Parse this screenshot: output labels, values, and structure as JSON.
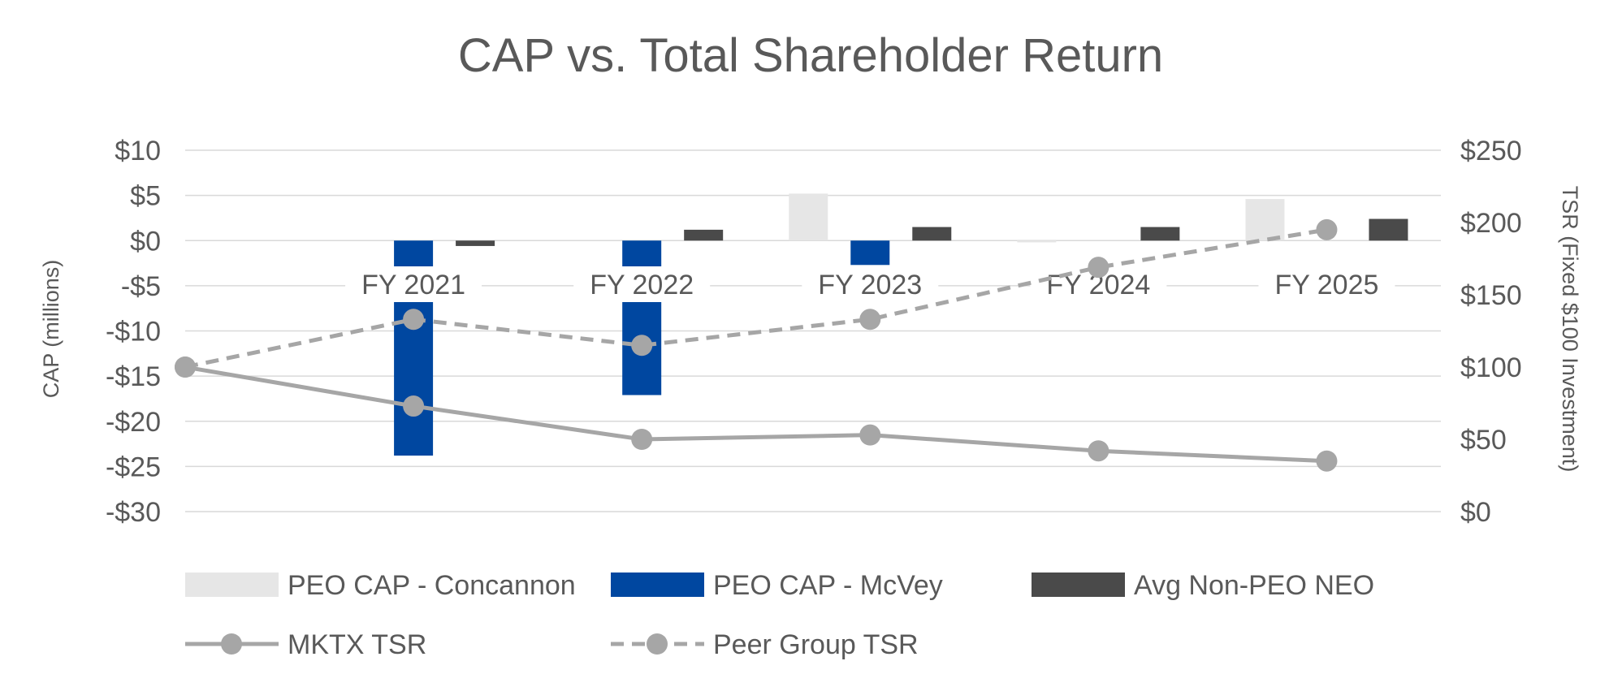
{
  "chart_data": {
    "type": "bar",
    "title": "CAP vs. Total Shareholder Return",
    "categories": [
      "FY 2021",
      "FY 2022",
      "FY 2023",
      "FY 2024",
      "FY 2025"
    ],
    "x_origin_label": "",
    "left_axis": {
      "label": "CAP (millions)",
      "ylim": [
        -30,
        10
      ],
      "ticks": [
        10,
        5,
        0,
        -5,
        -10,
        -15,
        -20,
        -25,
        -30
      ],
      "tick_labels": [
        "$10",
        "$5",
        "$0",
        "-$5",
        "-$10",
        "-$15",
        "-$20",
        "-$25",
        "-$30"
      ]
    },
    "right_axis": {
      "label": "TSR (Fixed $100 Investment)",
      "ylim": [
        0,
        250
      ],
      "ticks": [
        250,
        200,
        150,
        100,
        50,
        0
      ],
      "tick_labels": [
        "$250",
        "$200",
        "$150",
        "$100",
        "$50",
        "$0"
      ]
    },
    "grid": true,
    "legend_position": "bottom",
    "bar_series": [
      {
        "name": "PEO CAP - Concannon",
        "axis": "left",
        "color": "#e6e6e6",
        "values": [
          0,
          0,
          5.2,
          -0.2,
          4.6
        ]
      },
      {
        "name": "PEO CAP - McVey",
        "axis": "left",
        "color": "#0047a0",
        "values": [
          -23.8,
          -17.1,
          -2.7,
          0,
          0
        ]
      },
      {
        "name": "Avg Non-PEO NEO",
        "axis": "left",
        "color": "#4a4a4a",
        "values": [
          -0.6,
          1.2,
          1.5,
          1.5,
          2.4
        ]
      }
    ],
    "line_series": [
      {
        "name": "MKTX TSR",
        "axis": "right",
        "color": "#a6a6a6",
        "style": "solid",
        "x": [
          "start",
          "FY 2021",
          "FY 2022",
          "FY 2023",
          "FY 2024",
          "FY 2025"
        ],
        "values": [
          100,
          73,
          50,
          53,
          42,
          35
        ]
      },
      {
        "name": "Peer Group TSR",
        "axis": "right",
        "color": "#a6a6a6",
        "style": "dashed",
        "x": [
          "start",
          "FY 2021",
          "FY 2022",
          "FY 2023",
          "FY 2024",
          "FY 2025"
        ],
        "values": [
          100,
          133,
          115,
          133,
          169,
          195
        ]
      }
    ]
  }
}
